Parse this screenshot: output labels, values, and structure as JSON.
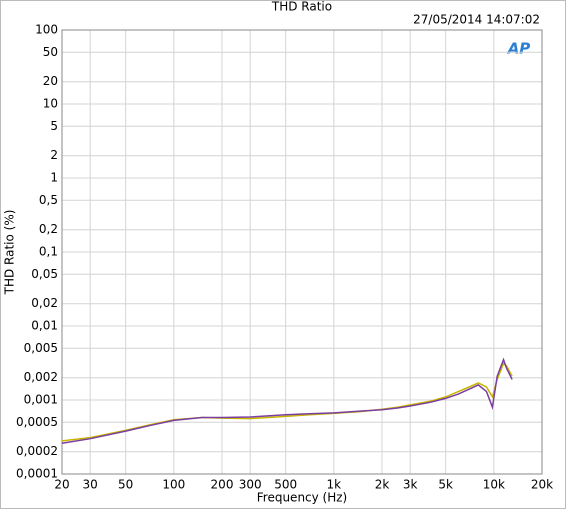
{
  "chart_data": {
    "type": "line",
    "title": "THD Ratio",
    "timestamp": "27/05/2014 14:07:02",
    "logo": "AP",
    "xlabel": "Frequency (Hz)",
    "ylabel": "THD Ratio (%)",
    "xscale": "log",
    "yscale": "log",
    "grid": true,
    "x": [
      20,
      30,
      50,
      70,
      100,
      150,
      200,
      300,
      500,
      700,
      1000,
      1500,
      2000,
      2500,
      3000,
      4000,
      5000,
      6000,
      7000,
      8000,
      9000,
      9800,
      10500,
      11500,
      12000,
      13000
    ],
    "series": [
      {
        "color": "#c8b400",
        "values": [
          0.00028,
          0.00031,
          0.00039,
          0.00046,
          0.00054,
          0.00058,
          0.00057,
          0.00056,
          0.0006,
          0.00063,
          0.00066,
          0.0007,
          0.00075,
          0.0008,
          0.00086,
          0.00096,
          0.0011,
          0.0013,
          0.0015,
          0.0017,
          0.0015,
          0.0011,
          0.0019,
          0.0031,
          0.0029,
          0.0021
        ]
      },
      {
        "color": "#7a3fa0",
        "values": [
          0.00026,
          0.0003,
          0.00038,
          0.00045,
          0.00053,
          0.00058,
          0.00058,
          0.00059,
          0.00063,
          0.00065,
          0.00067,
          0.00071,
          0.00074,
          0.00078,
          0.00083,
          0.00093,
          0.00105,
          0.0012,
          0.0014,
          0.0016,
          0.0013,
          0.0008,
          0.0021,
          0.0035,
          0.0027,
          0.0019
        ]
      }
    ],
    "xlim": [
      20,
      20000
    ],
    "xticks": [
      20,
      30,
      50,
      100,
      200,
      300,
      500,
      {
        "value": 1000,
        "label": "1k"
      },
      {
        "value": 2000,
        "label": "2k"
      },
      {
        "value": 3000,
        "label": "3k"
      },
      {
        "value": 5000,
        "label": "5k"
      },
      {
        "value": 10000,
        "label": "10k"
      },
      {
        "value": 20000,
        "label": "20k"
      }
    ],
    "ylim": [
      0.0001,
      100
    ],
    "yticks": [
      100,
      50,
      20,
      10,
      5,
      2,
      1,
      {
        "value": 0.5,
        "label": "0,5"
      },
      {
        "value": 0.2,
        "label": "0,2"
      },
      {
        "value": 0.1,
        "label": "0,1"
      },
      {
        "value": 0.05,
        "label": "0,05"
      },
      {
        "value": 0.02,
        "label": "0,02"
      },
      {
        "value": 0.01,
        "label": "0,01"
      },
      {
        "value": 0.005,
        "label": "0,005"
      },
      {
        "value": 0.002,
        "label": "0,002"
      },
      {
        "value": 0.001,
        "label": "0,001"
      },
      {
        "value": 0.0005,
        "label": "0,0005"
      },
      {
        "value": 0.0002,
        "label": "0,0002"
      },
      {
        "value": 0.0001,
        "label": "0,0001"
      }
    ]
  }
}
